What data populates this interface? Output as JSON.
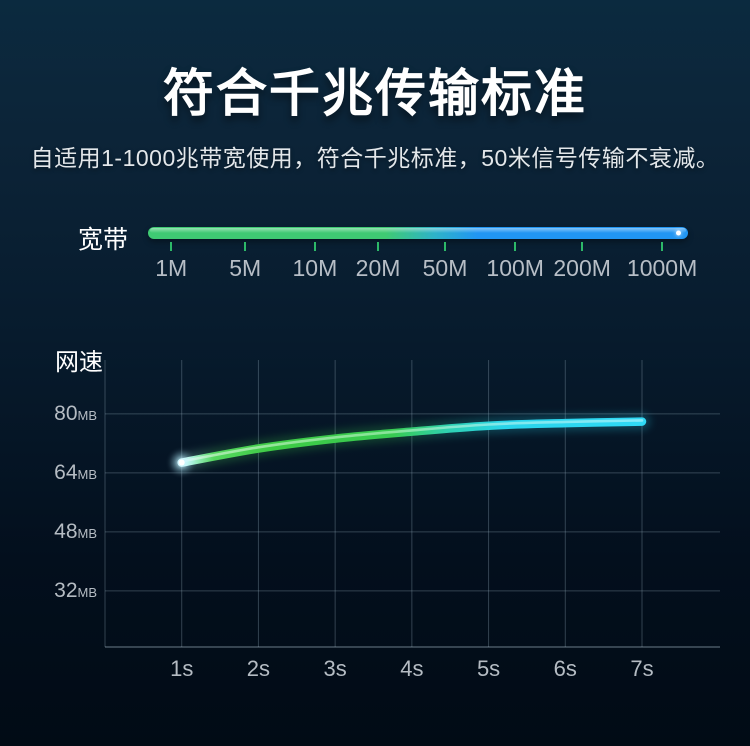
{
  "header": {
    "title": "符合千兆传输标准",
    "subtitle": "自适用1-1000兆带宽使用，符合千兆标准，50米信号传输不衰减。"
  },
  "bandwidth": {
    "label": "宽带",
    "scale_labels": [
      "1M",
      "5M",
      "10M",
      "20M",
      "50M",
      "100M",
      "200M",
      "1000M"
    ],
    "bar_color_start": "#3fca73",
    "bar_color_end": "#2196f3",
    "tick_color": "#2db968"
  },
  "chart_data": {
    "type": "line",
    "title": "",
    "ylabel": "网速",
    "xlabel": "",
    "x": [
      1,
      2,
      3,
      4,
      5,
      6,
      7
    ],
    "x_labels": [
      "1s",
      "2s",
      "3s",
      "4s",
      "5s",
      "6s",
      "7s"
    ],
    "values": [
      66.8,
      70.6,
      73.3,
      75.2,
      76.8,
      77.5,
      77.9
    ],
    "y_ticks": [
      80,
      64,
      48,
      32
    ],
    "y_unit": "MB",
    "ylim": [
      16.8,
      94.6
    ],
    "grid": true,
    "legend": null,
    "line_gradient": [
      {
        "offset": "0%",
        "color": "#f2ffff"
      },
      {
        "offset": "2.5%",
        "color": "#a5f2d2"
      },
      {
        "offset": "7%",
        "color": "#55d75f"
      },
      {
        "offset": "20%",
        "color": "#3ecb45"
      },
      {
        "offset": "46%",
        "color": "#38ca52"
      },
      {
        "offset": "58%",
        "color": "#2fd2b2"
      },
      {
        "offset": "70%",
        "color": "#29d4ea"
      },
      {
        "offset": "100%",
        "color": "#30d9f5"
      }
    ]
  }
}
